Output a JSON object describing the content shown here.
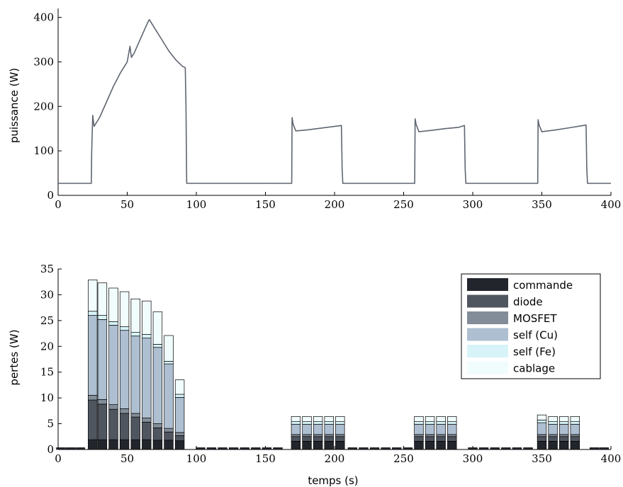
{
  "chart_data": [
    {
      "type": "line",
      "ylabel": "puissance (W)",
      "xlabel": "",
      "xlim": [
        0,
        400
      ],
      "ylim": [
        0,
        420
      ],
      "xticks": [
        "0",
        "50",
        "100",
        "150",
        "200",
        "250",
        "300",
        "350",
        "400"
      ],
      "yticks": [
        "0",
        "100",
        "200",
        "300",
        "400"
      ],
      "color": "#5f6670",
      "series": [
        {
          "x": [
            0,
            24,
            24.3,
            25,
            26,
            30,
            35,
            40,
            45,
            50,
            52,
            53,
            55,
            60,
            65,
            66,
            70,
            75,
            80,
            85,
            90,
            92,
            92.5,
            93,
            100,
            150,
            169,
            169.3,
            170,
            172,
            180,
            190,
            200,
            205,
            205.5,
            206,
            250,
            258,
            258.3,
            259,
            261,
            270,
            280,
            290,
            294,
            294.5,
            295,
            340,
            347,
            347.3,
            348,
            350,
            360,
            370,
            378,
            382,
            382.5,
            383,
            400
          ],
          "y": [
            27,
            27,
            100,
            180,
            155,
            175,
            210,
            245,
            275,
            300,
            335,
            310,
            320,
            355,
            390,
            395,
            375,
            350,
            325,
            305,
            290,
            287,
            200,
            27,
            27,
            27,
            27,
            175,
            160,
            145,
            147,
            151,
            155,
            157,
            60,
            27,
            27,
            27,
            172,
            160,
            143,
            146,
            150,
            153,
            157,
            60,
            27,
            27,
            27,
            170,
            158,
            143,
            147,
            152,
            156,
            158,
            60,
            27,
            27
          ]
        }
      ]
    },
    {
      "type": "bar",
      "stacked": true,
      "xlabel": "temps (s)",
      "ylabel": "pertes (W)",
      "xlim": [
        0,
        400
      ],
      "ylim": [
        0,
        35
      ],
      "xticks": [
        "0",
        "50",
        "100",
        "150",
        "200",
        "250",
        "300",
        "350",
        "400"
      ],
      "yticks": [
        "0",
        "5",
        "10",
        "15",
        "20",
        "25",
        "30",
        "35"
      ],
      "legend_position": "top-right",
      "bar_width": 6.5,
      "idle_value": 0.35,
      "idle_x": [
        2,
        9,
        16,
        103,
        111,
        119,
        127,
        135,
        143,
        151,
        159,
        213,
        221,
        229,
        237,
        245,
        253,
        300,
        308,
        316,
        324,
        332,
        340,
        388,
        395
      ],
      "x": [
        25,
        32,
        40,
        48,
        56,
        64,
        72,
        80,
        88,
        172,
        180,
        188,
        196,
        204,
        261,
        269,
        277,
        285,
        350,
        358,
        366,
        374
      ],
      "series": [
        {
          "name": "commande",
          "color": "#22262c",
          "values": [
            1.9,
            1.9,
            1.9,
            1.9,
            1.9,
            1.9,
            1.8,
            1.8,
            1.7,
            1.6,
            1.6,
            1.6,
            1.6,
            1.6,
            1.6,
            1.6,
            1.6,
            1.6,
            1.6,
            1.6,
            1.6,
            1.6
          ]
        },
        {
          "name": "diode",
          "color": "#50565f",
          "values": [
            7.7,
            6.9,
            5.9,
            5.1,
            4.4,
            3.4,
            2.4,
            1.6,
            1.0,
            0.9,
            0.9,
            0.9,
            0.9,
            0.9,
            0.9,
            0.9,
            0.9,
            0.9,
            0.9,
            0.9,
            0.9,
            0.9
          ]
        },
        {
          "name": "MOSFET",
          "color": "#838d99",
          "values": [
            0.9,
            0.9,
            0.9,
            0.9,
            0.7,
            0.8,
            0.8,
            0.7,
            0.6,
            0.4,
            0.4,
            0.4,
            0.4,
            0.4,
            0.4,
            0.4,
            0.4,
            0.4,
            0.4,
            0.4,
            0.4,
            0.4
          ]
        },
        {
          "name": "self (Cu)",
          "color": "#adbfd1",
          "values": [
            15.5,
            15.5,
            15.4,
            15.2,
            15.0,
            15.5,
            14.8,
            12.5,
            6.8,
            2.0,
            2.0,
            2.0,
            2.0,
            2.0,
            2.0,
            2.0,
            2.0,
            2.0,
            2.3,
            2.0,
            2.0,
            2.0
          ]
        },
        {
          "name": "self (Fe)",
          "color": "#d7f3f8",
          "values": [
            0.8,
            0.8,
            0.7,
            0.7,
            0.7,
            0.7,
            0.6,
            0.5,
            0.6,
            0.5,
            0.5,
            0.5,
            0.5,
            0.5,
            0.5,
            0.5,
            0.5,
            0.5,
            0.5,
            0.5,
            0.5,
            0.5
          ]
        },
        {
          "name": "cablage",
          "color": "#f1fcfd",
          "values": [
            6.1,
            6.3,
            6.5,
            6.8,
            6.5,
            6.5,
            6.3,
            5.0,
            2.8,
            1.0,
            1.0,
            1.0,
            1.0,
            1.0,
            1.0,
            1.0,
            1.0,
            1.0,
            1.0,
            1.0,
            1.0,
            1.0
          ]
        }
      ]
    }
  ]
}
